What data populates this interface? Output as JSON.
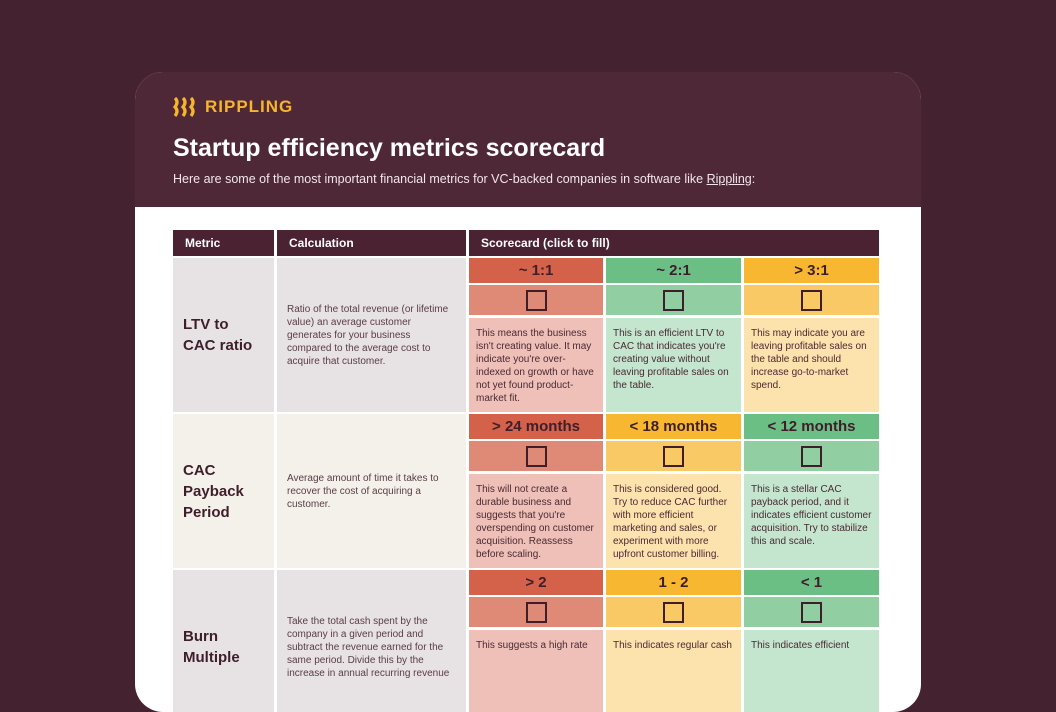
{
  "brand": "RIPPLING",
  "title": "Startup efficiency metrics scorecard",
  "subtitle": {
    "text": "Here are some of the most important financial metrics for VC-backed companies in software like ",
    "link": "Rippling",
    "end": ":"
  },
  "table": {
    "headers": [
      "Metric",
      "Calculation",
      "Scorecard (click to fill)"
    ],
    "rows": [
      {
        "metric": "LTV to CAC ratio",
        "background": "#e7e2e4",
        "calculation": "Ratio of the total revenue (or lifetime value) an average customer generates for your business compared to the average cost to acquire that customer.",
        "scores": [
          {
            "label": "~ 1:1",
            "color": "#d4614a",
            "text": "This means the business isn't creating value. It may indicate you're over-indexed on growth or have not yet found product-market fit."
          },
          {
            "label": "~ 2:1",
            "color": "#6cbf84",
            "text": "This is an efficient LTV to CAC that indicates you're creating value without leaving profitable sales on the table."
          },
          {
            "label": "> 3:1",
            "color": "#f7b731",
            "text": "This may indicate you are leaving profitable sales on the table and should increase go-to-market spend."
          }
        ]
      },
      {
        "metric": "CAC Payback Period",
        "background": "#f3f1ea",
        "calculation": "Average amount of time it takes to recover the cost of acquiring a customer.",
        "scores": [
          {
            "label": "> 24 months",
            "color": "#d4614a",
            "text": "This will not create a durable business and suggests that you're overspending on customer acquisition. Reassess before scaling."
          },
          {
            "label": "< 18 months",
            "color": "#f7b731",
            "text": "This is considered good. Try to reduce CAC further with more efficient marketing and sales, or experiment with more upfront customer billing."
          },
          {
            "label": "< 12 months",
            "color": "#6cbf84",
            "text": "This is a stellar CAC payback period, and it indicates efficient customer acquisition. Try to stabilize this and scale."
          }
        ]
      },
      {
        "metric": "Burn Multiple",
        "background": "#e7e2e4",
        "calculation": "Take the total cash spent by the company in a given period and subtract the revenue earned for the same period. Divide this by the increase in annual recurring revenue",
        "scores": [
          {
            "label": "> 2",
            "color": "#d4614a",
            "text": "This suggests a high rate"
          },
          {
            "label": "1 - 2",
            "color": "#f7b731",
            "text": "This indicates regular cash"
          },
          {
            "label": "< 1",
            "color": "#6cbf84",
            "text": "This indicates efficient"
          }
        ]
      }
    ]
  }
}
